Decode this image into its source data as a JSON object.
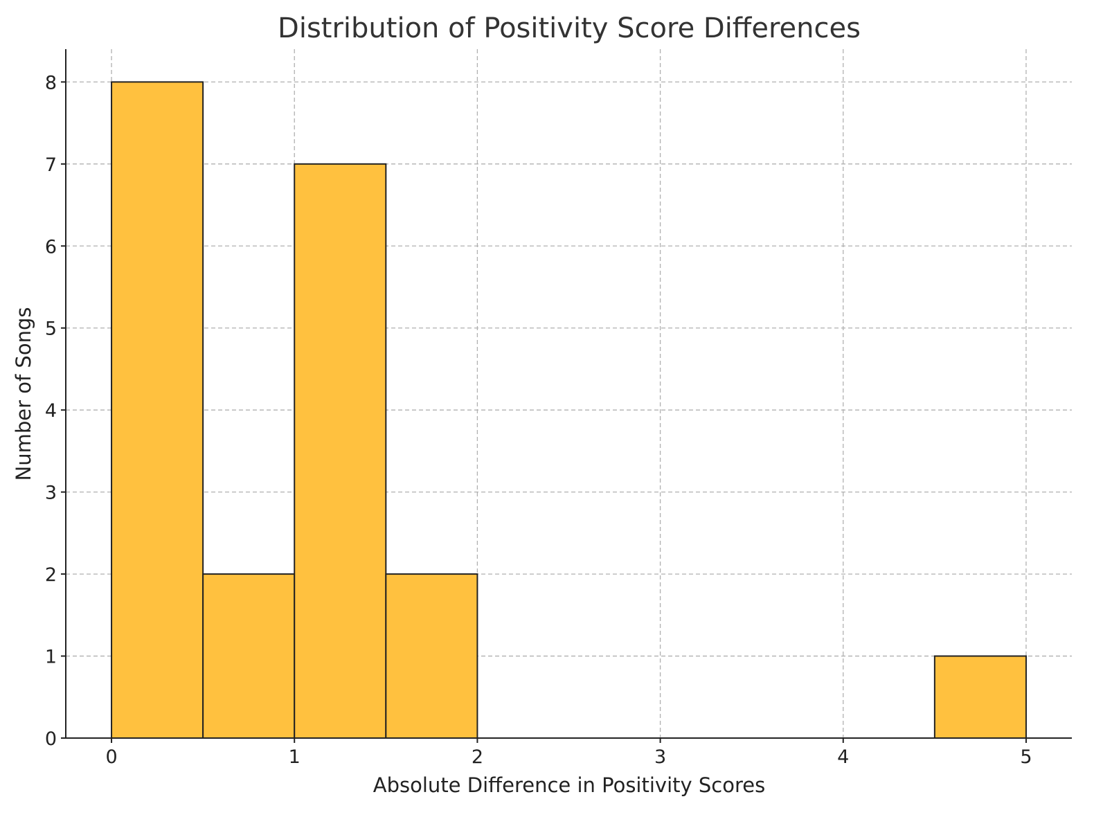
{
  "chart_data": {
    "type": "bar",
    "title": "Distribution of Positivity Score Differences",
    "xlabel": "Absolute Difference in Positivity Scores",
    "ylabel": "Number of Songs",
    "xlim": [
      -0.25,
      5.25
    ],
    "ylim": [
      0,
      8.4
    ],
    "xticks": [
      0,
      1,
      2,
      3,
      4,
      5
    ],
    "yticks": [
      0,
      1,
      2,
      3,
      4,
      5,
      6,
      7,
      8
    ],
    "bins": [
      {
        "x0": 0.0,
        "x1": 0.5,
        "count": 8
      },
      {
        "x0": 0.5,
        "x1": 1.0,
        "count": 2
      },
      {
        "x0": 1.0,
        "x1": 1.5,
        "count": 7
      },
      {
        "x0": 1.5,
        "x1": 2.0,
        "count": 2
      },
      {
        "x0": 2.0,
        "x1": 2.5,
        "count": 0
      },
      {
        "x0": 2.5,
        "x1": 3.0,
        "count": 0
      },
      {
        "x0": 3.0,
        "x1": 3.5,
        "count": 0
      },
      {
        "x0": 3.5,
        "x1": 4.0,
        "count": 0
      },
      {
        "x0": 4.0,
        "x1": 4.5,
        "count": 0
      },
      {
        "x0": 4.5,
        "x1": 5.0,
        "count": 1
      }
    ],
    "bar_color": "#ffc13f",
    "edge_color": "#222222",
    "grid": true
  }
}
